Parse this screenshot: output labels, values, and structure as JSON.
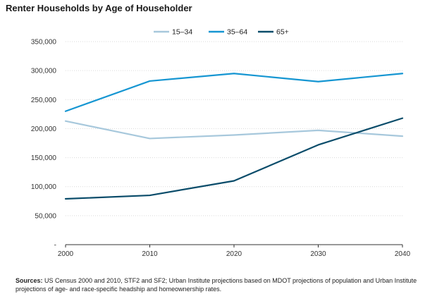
{
  "chart_data": {
    "type": "line",
    "title": "Renter Households by Age of Householder",
    "x": [
      2000,
      2010,
      2020,
      2030,
      2040
    ],
    "xticks": [
      "2000",
      "2010",
      "2020",
      "2030",
      "2040"
    ],
    "yticks": [
      "-",
      "50,000",
      "100,000",
      "150,000",
      "200,000",
      "250,000",
      "300,000",
      "350,000"
    ],
    "ylim": [
      0,
      350000
    ],
    "grid": true,
    "legend_position": "top-center",
    "series": [
      {
        "name": "15–34",
        "color": "#a7c8dc",
        "values": [
          213000,
          183000,
          189000,
          197000,
          187000
        ]
      },
      {
        "name": "35–64",
        "color": "#1696d2",
        "values": [
          230000,
          282000,
          295000,
          281000,
          295000
        ]
      },
      {
        "name": "65+",
        "color": "#0a4c6a",
        "values": [
          79000,
          85000,
          110000,
          172000,
          218000
        ]
      }
    ]
  },
  "source": {
    "label": "Sources:",
    "text": " US Census 2000 and 2010, STF2 and SF2; Urban Institute projections based on MDOT projections of population and Urban Institute projections of age- and race-specific headship and homeownership rates."
  }
}
